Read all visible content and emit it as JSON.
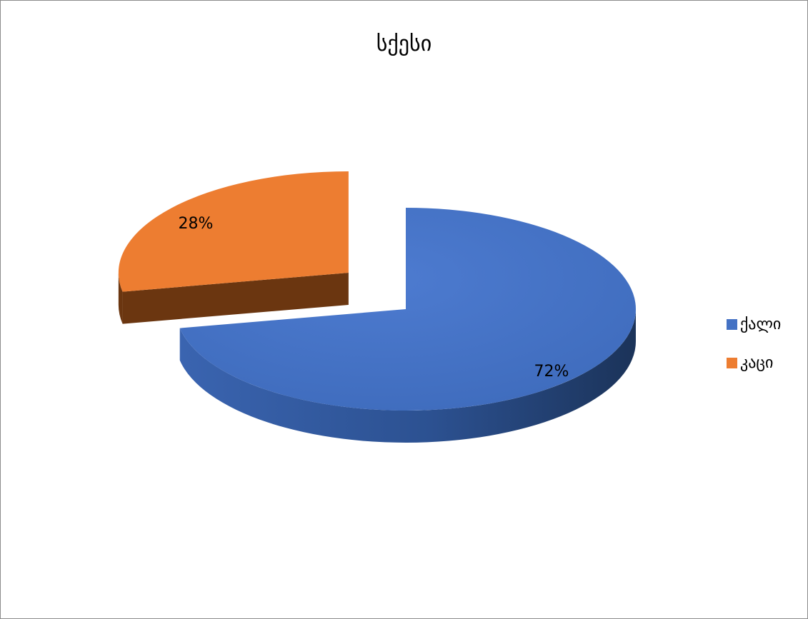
{
  "chart_data": {
    "type": "pie",
    "title": "სქესი",
    "style": "3d-exploded",
    "legend_position": "right",
    "slices": [
      {
        "label": "ქალი",
        "value": 72,
        "display": "72%",
        "color": "#4472C4",
        "side_color": "#2f5597"
      },
      {
        "label": "კაცი",
        "value": 28,
        "display": "28%",
        "color": "#ED7D31",
        "side_color": "#6b3610"
      }
    ]
  }
}
